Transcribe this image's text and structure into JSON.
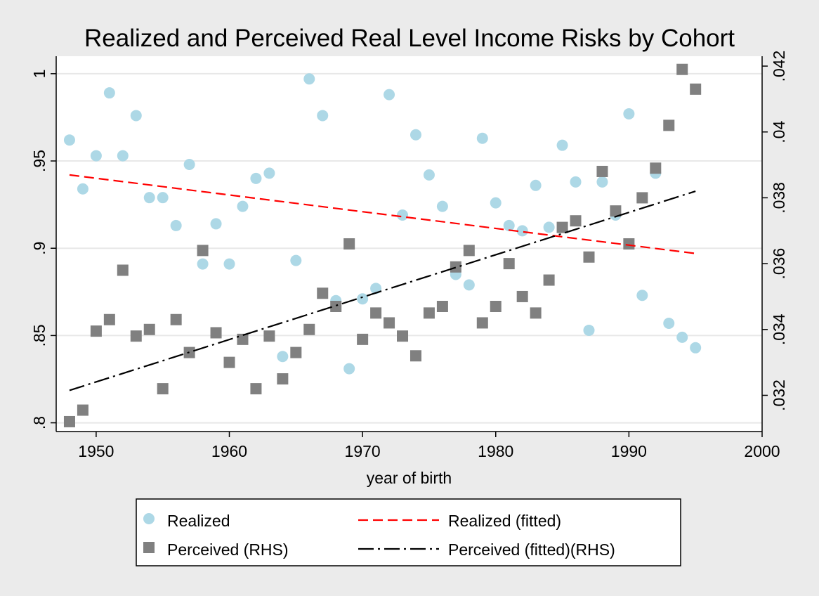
{
  "chart_data": {
    "type": "scatter",
    "title": "Realized and Perceived Real Level Income Risks by Cohort",
    "xlabel": "year of birth",
    "ylabel": "",
    "xlim": [
      1947,
      2000
    ],
    "xticks": [
      "1950",
      "1960",
      "1970",
      "1980",
      "1990",
      "2000"
    ],
    "xtick_values": [
      1950,
      1960,
      1970,
      1980,
      1990,
      2000
    ],
    "ylim_left": [
      0.795,
      1.01
    ],
    "yticks_left": [
      "1",
      ".95",
      ".9",
      ".85",
      ".8"
    ],
    "ytick_values_left": [
      1,
      0.95,
      0.9,
      0.85,
      0.8
    ],
    "ylim_right": [
      0.0309,
      0.0423
    ],
    "yticks_right": [
      ".042",
      ".04",
      ".038",
      ".036",
      ".034",
      ".032"
    ],
    "ytick_values_right": [
      0.042,
      0.04,
      0.038,
      0.036,
      0.034,
      0.032
    ],
    "grid": true,
    "legend_position": "bottom",
    "series": [
      {
        "name": "Realized",
        "axis": "left",
        "kind": "scatter",
        "marker": "circle",
        "color": "#add8e6",
        "x": [
          1948,
          1949,
          1950,
          1951,
          1952,
          1953,
          1954,
          1955,
          1956,
          1957,
          1958,
          1959,
          1960,
          1961,
          1962,
          1963,
          1964,
          1965,
          1966,
          1967,
          1968,
          1969,
          1970,
          1971,
          1972,
          1973,
          1974,
          1975,
          1976,
          1977,
          1978,
          1979,
          1980,
          1981,
          1982,
          1983,
          1984,
          1985,
          1986,
          1987,
          1988,
          1989,
          1990,
          1991,
          1992,
          1993,
          1994,
          1995
        ],
        "y": [
          0.962,
          0.934,
          0.953,
          0.989,
          0.953,
          0.976,
          0.929,
          0.929,
          0.913,
          0.948,
          0.891,
          0.914,
          0.891,
          0.924,
          0.94,
          0.943,
          0.838,
          0.893,
          0.997,
          0.976,
          0.87,
          0.831,
          0.871,
          0.877,
          0.988,
          0.919,
          0.965,
          0.942,
          0.924,
          0.885,
          0.879,
          0.963,
          0.926,
          0.913,
          0.91,
          0.936,
          0.912,
          0.959,
          0.938,
          0.853,
          0.938,
          0.919,
          0.977,
          0.873,
          0.943,
          0.857,
          0.849,
          0.843
        ]
      },
      {
        "name": "Perceived (RHS)",
        "axis": "right",
        "kind": "scatter",
        "marker": "square",
        "color": "#808080",
        "x": [
          1948,
          1949,
          1950,
          1951,
          1952,
          1953,
          1954,
          1955,
          1956,
          1957,
          1958,
          1959,
          1960,
          1961,
          1962,
          1963,
          1964,
          1965,
          1966,
          1967,
          1968,
          1969,
          1970,
          1971,
          1972,
          1973,
          1974,
          1975,
          1976,
          1977,
          1978,
          1979,
          1980,
          1981,
          1982,
          1983,
          1984,
          1985,
          1986,
          1987,
          1988,
          1989,
          1990,
          1991,
          1992,
          1993,
          1994,
          1995
        ],
        "y": [
          0.0312,
          0.03155,
          0.03395,
          0.0343,
          0.0358,
          0.0338,
          0.034,
          0.0322,
          0.0343,
          0.0333,
          0.0364,
          0.0339,
          0.033,
          0.0337,
          0.0322,
          0.0338,
          0.0325,
          0.0333,
          0.034,
          0.0351,
          0.0347,
          0.0366,
          0.0337,
          0.0345,
          0.0342,
          0.0338,
          0.0332,
          0.0345,
          0.0347,
          0.0359,
          0.0364,
          0.0342,
          0.0347,
          0.036,
          0.035,
          0.0345,
          0.0355,
          0.0371,
          0.0373,
          0.0362,
          0.0388,
          0.0376,
          0.0366,
          0.038,
          0.0389,
          0.0402,
          0.0419,
          0.0413
        ]
      },
      {
        "name": "Realized (fitted)",
        "axis": "left",
        "kind": "line",
        "dash": "14,7",
        "color": "#ff0000",
        "x": [
          1948,
          1995
        ],
        "y": [
          0.942,
          0.897
        ]
      },
      {
        "name": "Perceived (fitted)(RHS)",
        "axis": "right",
        "kind": "line",
        "dash": "22,6,3,6",
        "color": "#000000",
        "x": [
          1948,
          1995
        ],
        "y": [
          0.03215,
          0.0382
        ]
      }
    ]
  }
}
